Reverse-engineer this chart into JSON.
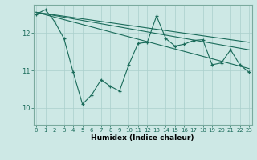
{
  "xlabel": "Humidex (Indice chaleur)",
  "bg_color": "#cde8e5",
  "grid_color": "#aacfcc",
  "line_color": "#1a6b5a",
  "x_ticks": [
    0,
    1,
    2,
    3,
    4,
    5,
    6,
    7,
    8,
    9,
    10,
    11,
    12,
    13,
    14,
    15,
    16,
    17,
    18,
    19,
    20,
    21,
    22,
    23
  ],
  "y_ticks": [
    10,
    11,
    12
  ],
  "ylim": [
    9.55,
    12.75
  ],
  "xlim": [
    -0.3,
    23.3
  ],
  "series1_y": [
    12.5,
    12.62,
    12.3,
    11.85,
    10.95,
    10.1,
    10.35,
    10.75,
    10.58,
    10.45,
    11.15,
    11.72,
    11.75,
    12.45,
    11.85,
    11.65,
    11.7,
    11.8,
    11.82,
    11.15,
    11.2,
    11.55,
    11.15,
    10.95
  ],
  "trend1_y_start": 12.55,
  "trend1_y_end": 11.55,
  "trend2_y_start": 12.55,
  "trend2_y_end": 11.75,
  "trend3_y_start": 12.55,
  "trend3_y_end": 11.05,
  "tick_fontsize": 5.0,
  "xlabel_fontsize": 6.5
}
